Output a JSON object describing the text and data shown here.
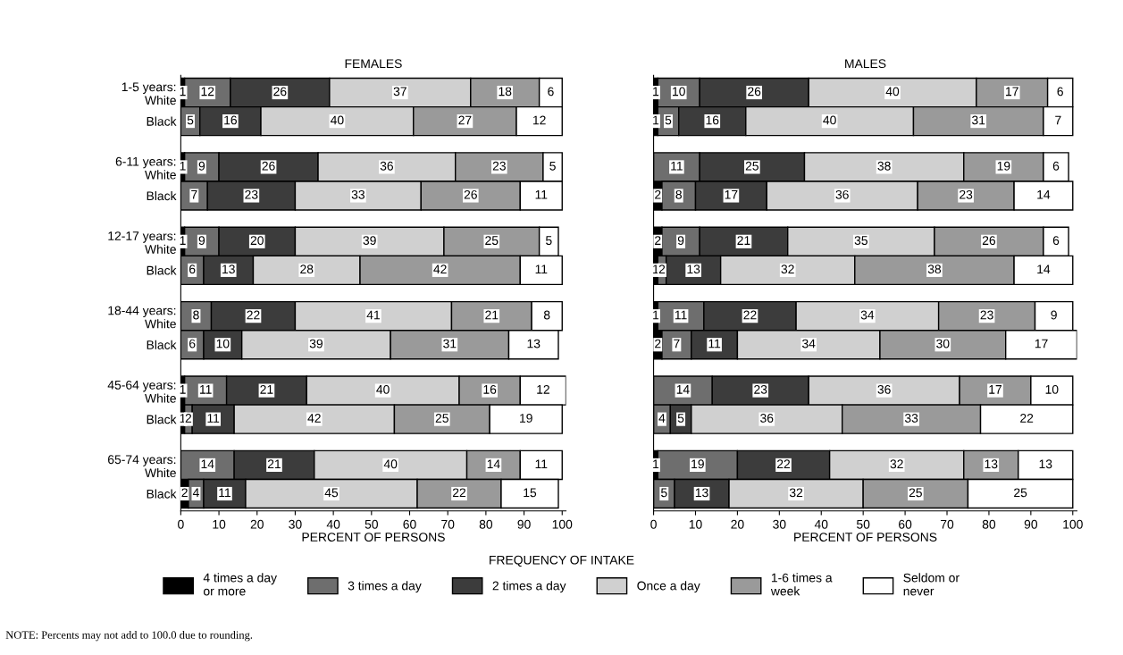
{
  "chart_data": [
    {
      "type": "bar",
      "orientation": "horizontal",
      "stacked": true,
      "title": "FEMALES",
      "xlabel": "PERCENT OF PERSONS",
      "categories": [
        "1-5 years:\nWhite",
        "Black",
        "6-11 years:\nWhite",
        "Black",
        "12-17 years:\nWhite",
        "Black",
        "18-44 years:\nWhite",
        "Black",
        "45-64 years:\nWhite",
        "Black",
        "65-74 years:\nWhite",
        "Black"
      ],
      "xlim": [
        0,
        101
      ],
      "xticks": [
        0,
        10,
        20,
        30,
        40,
        50,
        60,
        70,
        80,
        90,
        100
      ],
      "legend": "bottom",
      "legend_title": "FREQUENCY OF INTAKE",
      "annotations": [
        "NOTE: Percents may not add to 100.0 due to rounding."
      ],
      "series": [
        {
          "name": "4 times a day\nor more",
          "color": "#000000",
          "values": [
            1,
            0,
            1,
            0,
            1,
            0,
            0,
            0,
            1,
            1,
            0,
            2
          ],
          "value_labels": [
            "1",
            null,
            "1",
            null,
            "1",
            null,
            null,
            null,
            "1",
            "1",
            null,
            "2"
          ]
        },
        {
          "name": "3 times a day",
          "color": "#6e6e6e",
          "values": [
            12,
            5,
            9,
            7,
            9,
            6,
            8,
            6,
            11,
            2,
            14,
            4
          ],
          "value_labels": [
            "12",
            "5",
            "9",
            "7",
            "9",
            "6",
            "8",
            "6",
            "11",
            "2",
            "14",
            "4"
          ]
        },
        {
          "name": "2 times a day",
          "color": "#3c3c3c",
          "values": [
            26,
            16,
            26,
            23,
            20,
            13,
            22,
            10,
            21,
            11,
            21,
            11
          ],
          "value_labels": [
            "26",
            "16",
            "26",
            "23",
            "20",
            "13",
            "22",
            "10",
            "21",
            "11",
            "21",
            "11"
          ]
        },
        {
          "name": "Once a day",
          "color": "#d0d0d0",
          "values": [
            37,
            40,
            36,
            33,
            39,
            28,
            41,
            39,
            40,
            42,
            40,
            45
          ],
          "value_labels": [
            "37",
            "40",
            "36",
            "33",
            "39",
            "28",
            "41",
            "39",
            "40",
            "42",
            "40",
            "45"
          ]
        },
        {
          "name": "1-6 times a\nweek",
          "color": "#9a9a9a",
          "values": [
            18,
            27,
            23,
            26,
            25,
            42,
            21,
            31,
            16,
            25,
            14,
            22
          ],
          "value_labels": [
            "18",
            "27",
            "23",
            "26",
            "25",
            "42",
            "21",
            "31",
            "16",
            "25",
            "14",
            "22"
          ]
        },
        {
          "name": "Seldom or\nnever",
          "color": "#ffffff",
          "values": [
            6,
            12,
            5,
            11,
            5,
            11,
            8,
            13,
            12,
            19,
            11,
            15
          ],
          "value_labels": [
            "6",
            "12",
            "5",
            "11",
            "5",
            "11",
            "8",
            "13",
            "12",
            "19",
            "11",
            "15"
          ]
        }
      ]
    },
    {
      "type": "bar",
      "orientation": "horizontal",
      "stacked": true,
      "title": "MALES",
      "xlabel": "PERCENT OF PERSONS",
      "xlim": [
        0,
        101
      ],
      "xticks": [
        0,
        10,
        20,
        30,
        40,
        50,
        60,
        70,
        80,
        90,
        100
      ],
      "tick_labels": "x",
      "series": [
        {
          "color": "#000000",
          "values": [
            1,
            1,
            0,
            2,
            2,
            1,
            1,
            2,
            0,
            0,
            1,
            0
          ],
          "value_labels": [
            "1",
            "1",
            null,
            "2",
            "2",
            "1",
            "1",
            "2",
            null,
            null,
            "1",
            null
          ]
        },
        {
          "color": "#6e6e6e",
          "values": [
            10,
            5,
            11,
            8,
            9,
            2,
            11,
            7,
            14,
            4,
            19,
            5
          ],
          "value_labels": [
            "10",
            "5",
            "11",
            "8",
            "9",
            "2",
            "11",
            "7",
            "14",
            "4",
            "19",
            "5"
          ]
        },
        {
          "color": "#3c3c3c",
          "values": [
            26,
            16,
            25,
            17,
            21,
            13,
            22,
            11,
            23,
            5,
            22,
            13
          ],
          "value_labels": [
            "26",
            "16",
            "25",
            "17",
            "21",
            "13",
            "22",
            "11",
            "23",
            "5",
            "22",
            "13"
          ]
        },
        {
          "color": "#d0d0d0",
          "values": [
            40,
            40,
            38,
            36,
            35,
            32,
            34,
            34,
            36,
            36,
            32,
            32
          ],
          "value_labels": [
            "40",
            "40",
            "38",
            "36",
            "35",
            "32",
            "34",
            "34",
            "36",
            "36",
            "32",
            "32"
          ]
        },
        {
          "color": "#9a9a9a",
          "values": [
            17,
            31,
            19,
            23,
            26,
            38,
            23,
            30,
            17,
            33,
            13,
            25
          ],
          "value_labels": [
            "17",
            "31",
            "19",
            "23",
            "26",
            "38",
            "23",
            "30",
            "17",
            "33",
            "13",
            "25"
          ]
        },
        {
          "color": "#ffffff",
          "values": [
            6,
            7,
            6,
            14,
            6,
            14,
            9,
            17,
            10,
            22,
            13,
            25
          ],
          "value_labels": [
            "6",
            "7",
            "6",
            "14",
            "6",
            "14",
            "9",
            "17",
            "10",
            "22",
            "13",
            "25"
          ]
        }
      ]
    }
  ]
}
